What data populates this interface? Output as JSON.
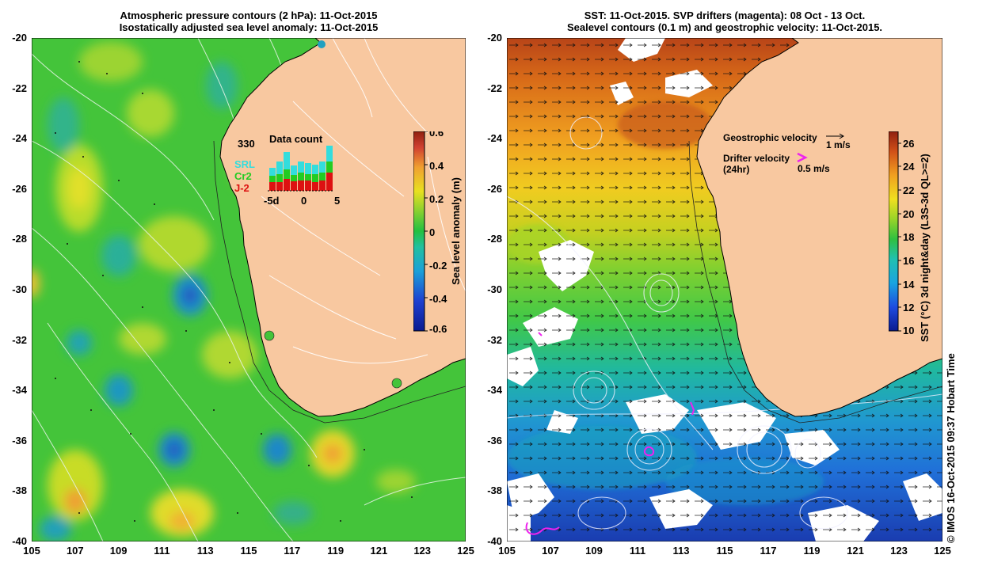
{
  "left_panel": {
    "title_line1": "Atmospheric pressure contours (2 hPa): 11-Oct-2015",
    "title_line2": "Isostatically adjusted sea level anomaly: 11-Oct-2015",
    "lat_ticks": [
      "-20",
      "-22",
      "-24",
      "-26",
      "-28",
      "-30",
      "-32",
      "-34",
      "-36",
      "-38",
      "-40"
    ],
    "lon_ticks": [
      "105",
      "107",
      "109",
      "111",
      "113",
      "115",
      "117",
      "119",
      "121",
      "123",
      "125"
    ],
    "colorbar": {
      "label": "Sea level anomaly (m)",
      "ticks": [
        "0.6",
        "0.4",
        "0.2",
        "0",
        "-0.2",
        "-0.4",
        "-0.6"
      ],
      "range": [
        -0.6,
        0.6
      ]
    },
    "inset": {
      "count": "330",
      "title": "Data count",
      "legend": [
        {
          "name": "SRL",
          "color": "#33dddd"
        },
        {
          "name": "Cr2",
          "color": "#22cc22"
        },
        {
          "name": "J-2",
          "color": "#dd1111"
        }
      ],
      "x_ticks": [
        "-5d",
        "0",
        "5"
      ]
    }
  },
  "right_panel": {
    "title_line1": "SST: 11-Oct-2015. SVP drifters (magenta): 08 Oct - 13 Oct.",
    "title_line2": "Sealevel contours (0.1 m) and geostrophic velocity: 11-Oct-2015.",
    "lat_ticks": [
      "-20",
      "-22",
      "-24",
      "-26",
      "-28",
      "-30",
      "-32",
      "-34",
      "-36",
      "-38",
      "-40"
    ],
    "lon_ticks": [
      "105",
      "107",
      "109",
      "111",
      "113",
      "115",
      "117",
      "119",
      "121",
      "123",
      "125"
    ],
    "colorbar": {
      "label": "SST (°C) 3d night&day (L3S-3d QL>=2)",
      "ticks": [
        "26",
        "24",
        "22",
        "20",
        "18",
        "16",
        "14",
        "12",
        "10"
      ],
      "range": [
        10,
        27
      ]
    },
    "legend": {
      "geo_label": "Geostrophic velocity",
      "geo_scale": "1 m/s",
      "drifter_label_1": "Drifter velocity",
      "drifter_label_2": "(24hr)",
      "drifter_scale": "0.5 m/s"
    }
  },
  "copyright": "© IMOS 16-Oct-2015 09:37 Hobart Time",
  "colors": {
    "land": "#f8c8a0",
    "sla_main": "#44cc33",
    "cloud": "#ffffff",
    "drifter": "#ee22ee"
  }
}
